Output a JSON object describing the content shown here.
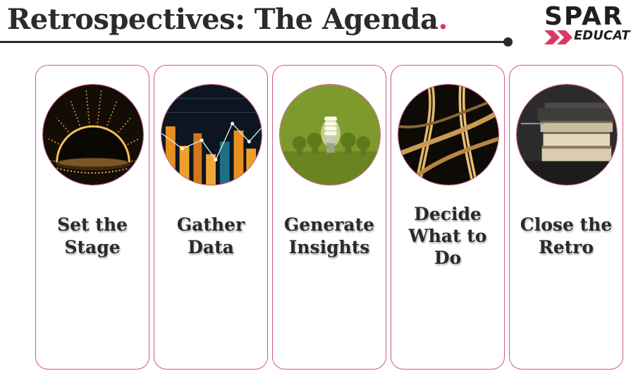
{
  "header": {
    "title": "Retrospectives: The Agenda",
    "title_dot": ".",
    "logo_top": "SPAR",
    "logo_sub": "EDUCAT",
    "accent_color": "#d63a68"
  },
  "cards": [
    {
      "label": "Set the\nStage",
      "image": "stage-arc-lights-image"
    },
    {
      "label": "Gather\nData",
      "image": "data-chart-image"
    },
    {
      "label": "Generate\nInsights",
      "image": "lightbulb-image"
    },
    {
      "label": "Decide\nWhat to\nDo",
      "image": "crossing-roads-image"
    },
    {
      "label": "Close the\nRetro",
      "image": "book-stack-image"
    }
  ]
}
